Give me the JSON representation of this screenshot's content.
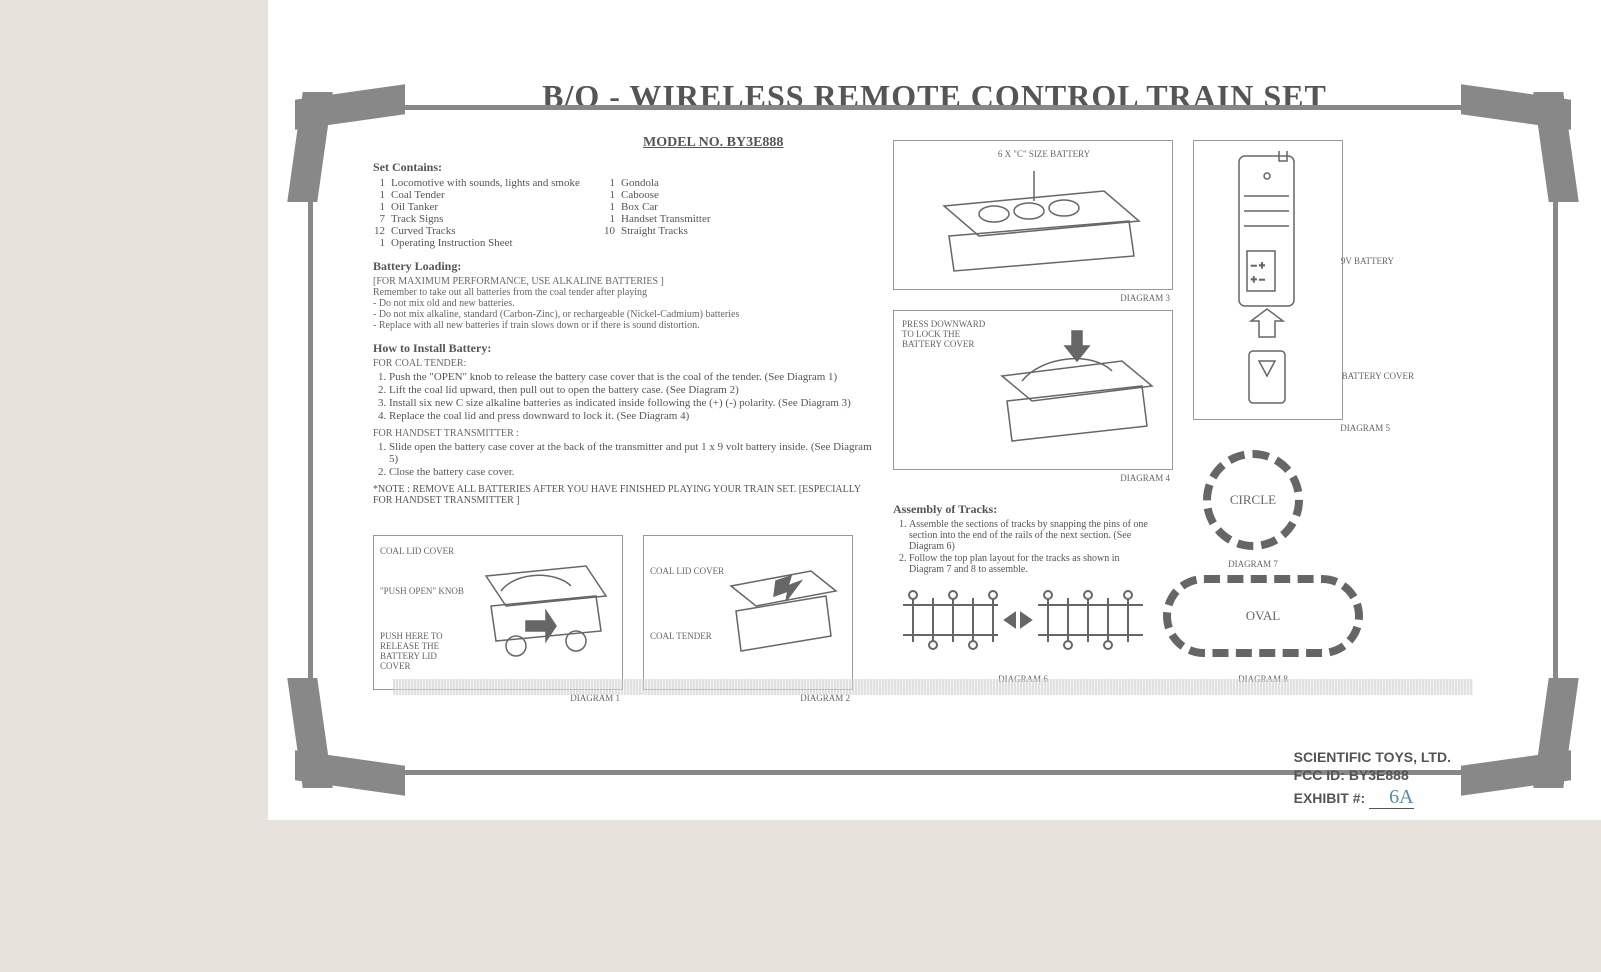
{
  "title": "B/O - WIRELESS REMOTE CONTROL TRAIN SET",
  "model": "MODEL NO. BY3E888",
  "set_contains_heading": "Set Contains:",
  "set_contains_left": [
    {
      "q": "1",
      "t": "Locomotive with sounds, lights and smoke"
    },
    {
      "q": "1",
      "t": "Coal Tender"
    },
    {
      "q": "1",
      "t": "Oil Tanker"
    },
    {
      "q": "7",
      "t": "Track Signs"
    },
    {
      "q": "12",
      "t": "Curved Tracks"
    },
    {
      "q": "1",
      "t": "Operating Instruction Sheet"
    }
  ],
  "set_contains_right": [
    {
      "q": "1",
      "t": "Gondola"
    },
    {
      "q": "1",
      "t": "Caboose"
    },
    {
      "q": "1",
      "t": "Box Car"
    },
    {
      "q": "1",
      "t": "Handset Transmitter"
    },
    {
      "q": "10",
      "t": "Straight Tracks"
    }
  ],
  "battery_heading": "Battery Loading:",
  "battery_sub": "[FOR MAXIMUM PERFORMANCE, USE ALKALINE BATTERIES ]",
  "battery_lines": [
    "Remember to take out all batteries from the coal tender after playing",
    "- Do not mix old and new batteries.",
    "- Do not mix alkaline, standard (Carbon-Zinc), or rechargeable (Nickel-Cadmium) batteries",
    "- Replace with all new batteries if train slows down or if there is sound distortion."
  ],
  "install_heading": "How to Install Battery:",
  "install_sub1": "FOR COAL TENDER:",
  "install_steps1": [
    "Push the \"OPEN\" knob to release the battery case cover that is the coal of the tender. (See Diagram 1)",
    "Lift the coal lid upward, then pull out to open the battery case. (See Diagram 2)",
    "Install six new C size alkaline batteries as indicated inside following the (+) (-) polarity. (See Diagram 3)",
    "Replace the coal lid and press downward to lock it. (See Diagram 4)"
  ],
  "install_sub2": "FOR HANDSET TRANSMITTER :",
  "install_steps2": [
    "Slide open the battery case cover at the back of the transmitter and put 1 x 9 volt battery inside. (See Diagram 5)",
    "Close the battery case cover."
  ],
  "install_note": "*NOTE : REMOVE ALL BATTERIES AFTER YOU HAVE FINISHED PLAYING YOUR TRAIN SET. [ESPECIALLY FOR HANDSET TRANSMITTER ]",
  "d1_label": "DIAGRAM 1",
  "d1_c1": "COAL LID COVER",
  "d1_c2": "\"PUSH OPEN\" KNOB",
  "d1_c3": "PUSH HERE TO RELEASE THE BATTERY LID COVER",
  "d2_label": "DIAGRAM 2",
  "d2_c1": "COAL LID COVER",
  "d2_c2": "COAL TENDER",
  "d3_label": "DIAGRAM 3",
  "d3_c1": "6 X \"C\" SIZE BATTERY",
  "d4_label": "DIAGRAM 4",
  "d4_c1": "PRESS DOWNWARD TO LOCK THE BATTERY COVER",
  "d5_label": "DIAGRAM 5",
  "d5_c1": "9V BATTERY",
  "d5_c2": "BATTERY COVER",
  "assembly_heading": "Assembly of Tracks:",
  "assembly_steps": [
    "Assemble the sections of tracks by snapping the pins of one section into the end of the rails of the next section. (See Diagram 6)",
    "Follow the top plan layout for the tracks as shown in Diagram 7 and 8 to assemble."
  ],
  "d6_label": "DIAGRAM 6",
  "d7_label": "DIAGRAM 7",
  "d7_text": "CIRCLE",
  "d8_label": "DIAGRAM 8",
  "d8_text": "OVAL",
  "footer_company": "SCIENTIFIC TOYS, LTD.",
  "footer_fcc": "FCC ID:  BY3E888",
  "footer_exhibit": "EXHIBIT #:",
  "footer_exhibit_num": "6A"
}
